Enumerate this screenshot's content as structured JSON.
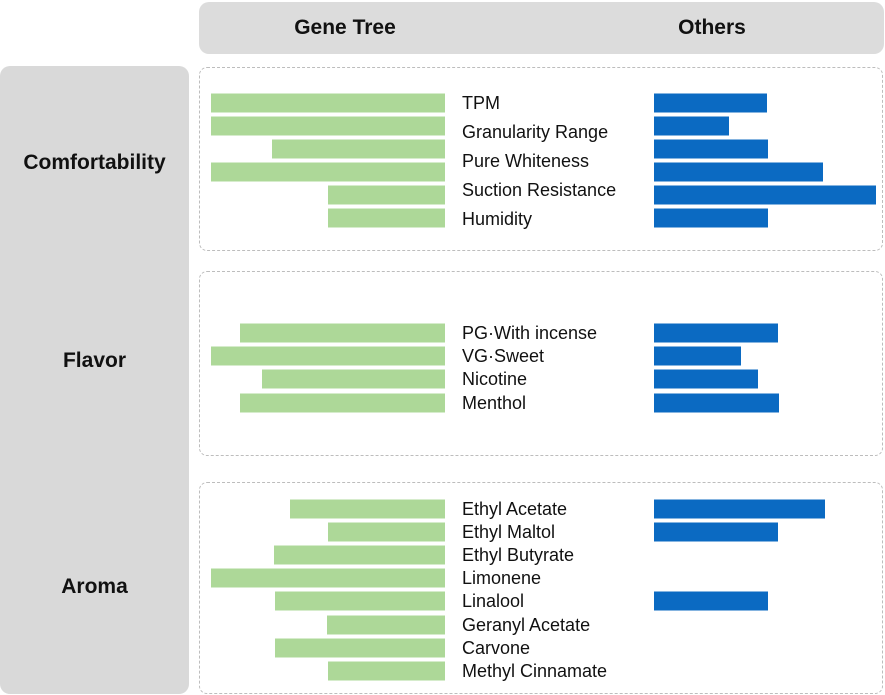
{
  "header": {
    "left_title": "Gene Tree",
    "right_title": "Others"
  },
  "colors": {
    "gene_tree": "#add898",
    "others": "#0b6ac2",
    "panel": "#dcdcdc",
    "border": "#bdbdbd"
  },
  "chart_data": {
    "type": "bar",
    "orientation": "horizontal-butterfly",
    "legend": "none",
    "grid": false,
    "series_names": [
      "Gene Tree",
      "Others"
    ],
    "groups": [
      {
        "name": "Comfortability",
        "items": [
          {
            "label": "TPM",
            "gene_tree": 234,
            "others": 113
          },
          {
            "label": "Granularity Range",
            "gene_tree": 234,
            "others": 75
          },
          {
            "label": "Pure Whiteness",
            "gene_tree": 173,
            "others": 114
          },
          {
            "label": "Suction Resistance",
            "gene_tree": 234,
            "others": 169
          },
          {
            "label": "Humidity",
            "gene_tree": 117,
            "others": 222
          },
          {
            "label": "",
            "gene_tree": 117,
            "others": 114
          }
        ]
      },
      {
        "name": "Flavor",
        "items": [
          {
            "label": "PG·With incense",
            "gene_tree": 205,
            "others": 124
          },
          {
            "label": "VG·Sweet",
            "gene_tree": 234,
            "others": 87
          },
          {
            "label": "Nicotine",
            "gene_tree": 183,
            "others": 104
          },
          {
            "label": "Menthol",
            "gene_tree": 205,
            "others": 125
          }
        ]
      },
      {
        "name": "Aroma",
        "items": [
          {
            "label": "Ethyl Acetate",
            "gene_tree": 155,
            "others": 171
          },
          {
            "label": "Ethyl Maltol",
            "gene_tree": 117,
            "others": 124
          },
          {
            "label": "Ethyl Butyrate",
            "gene_tree": 171,
            "others": 0
          },
          {
            "label": "Limonene",
            "gene_tree": 234,
            "others": 0
          },
          {
            "label": "Linalool",
            "gene_tree": 170,
            "others": 114
          },
          {
            "label": "Geranyl Acetate",
            "gene_tree": 118,
            "others": 0
          },
          {
            "label": "Carvone",
            "gene_tree": 170,
            "others": 0
          },
          {
            "label": "Methyl Cinnamate",
            "gene_tree": 117,
            "others": 0
          }
        ]
      }
    ]
  }
}
